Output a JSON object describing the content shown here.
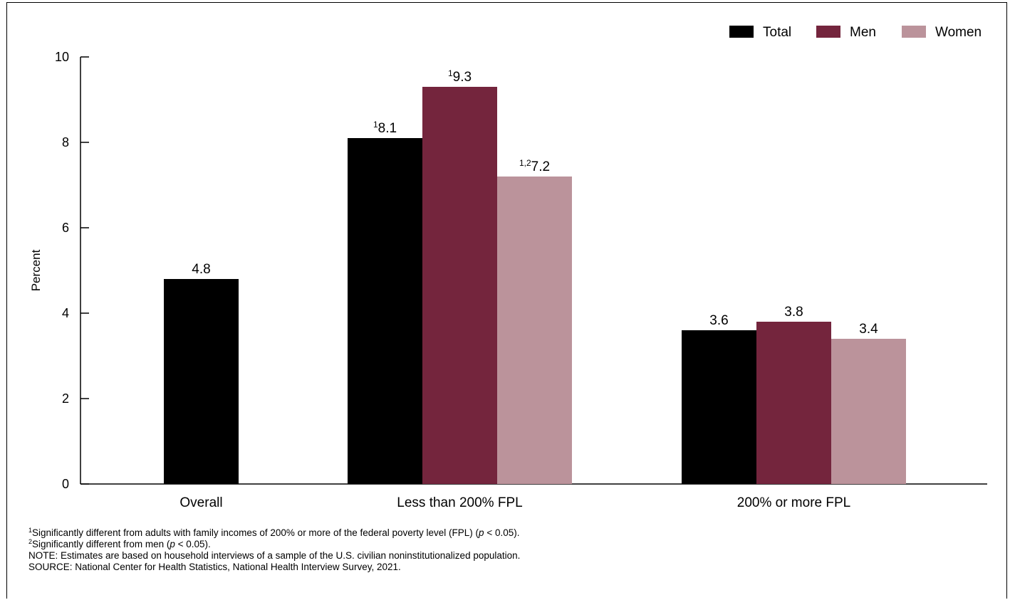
{
  "chart_data": {
    "type": "bar",
    "ylabel": "Percent",
    "xlabel": "",
    "ylim": [
      0,
      10
    ],
    "yticks": [
      0,
      2,
      4,
      6,
      8,
      10
    ],
    "categories": [
      "Overall",
      "Less than 200% FPL",
      "200% or more FPL"
    ],
    "legend": {
      "placement": "top-right"
    },
    "series": [
      {
        "name": "Total",
        "color": "#000000",
        "values": [
          4.8,
          8.1,
          3.6
        ],
        "superscripts": [
          "",
          "1",
          ""
        ]
      },
      {
        "name": "Men",
        "color": "#74253d",
        "values": [
          null,
          9.3,
          3.8
        ],
        "superscripts": [
          "",
          "1",
          ""
        ]
      },
      {
        "name": "Women",
        "color": "#bb939b",
        "values": [
          null,
          7.2,
          3.4
        ],
        "superscripts": [
          "",
          "1,2",
          ""
        ]
      }
    ]
  },
  "footnotes": {
    "note1": {
      "sup": "1",
      "text": "Significantly different from adults with family incomes of 200% or more of the federal poverty level (FPL) (",
      "p": "p",
      "tail": " < 0.05)."
    },
    "note2": {
      "sup": "2",
      "text": "Significantly different from men (",
      "p": "p",
      "tail": " < 0.05)."
    },
    "note": "NOTE: Estimates are based on household interviews of a sample of the U.S. civilian noninstitutionalized population.",
    "source": "SOURCE: National Center for Health Statistics, National Health Interview Survey, 2021."
  }
}
